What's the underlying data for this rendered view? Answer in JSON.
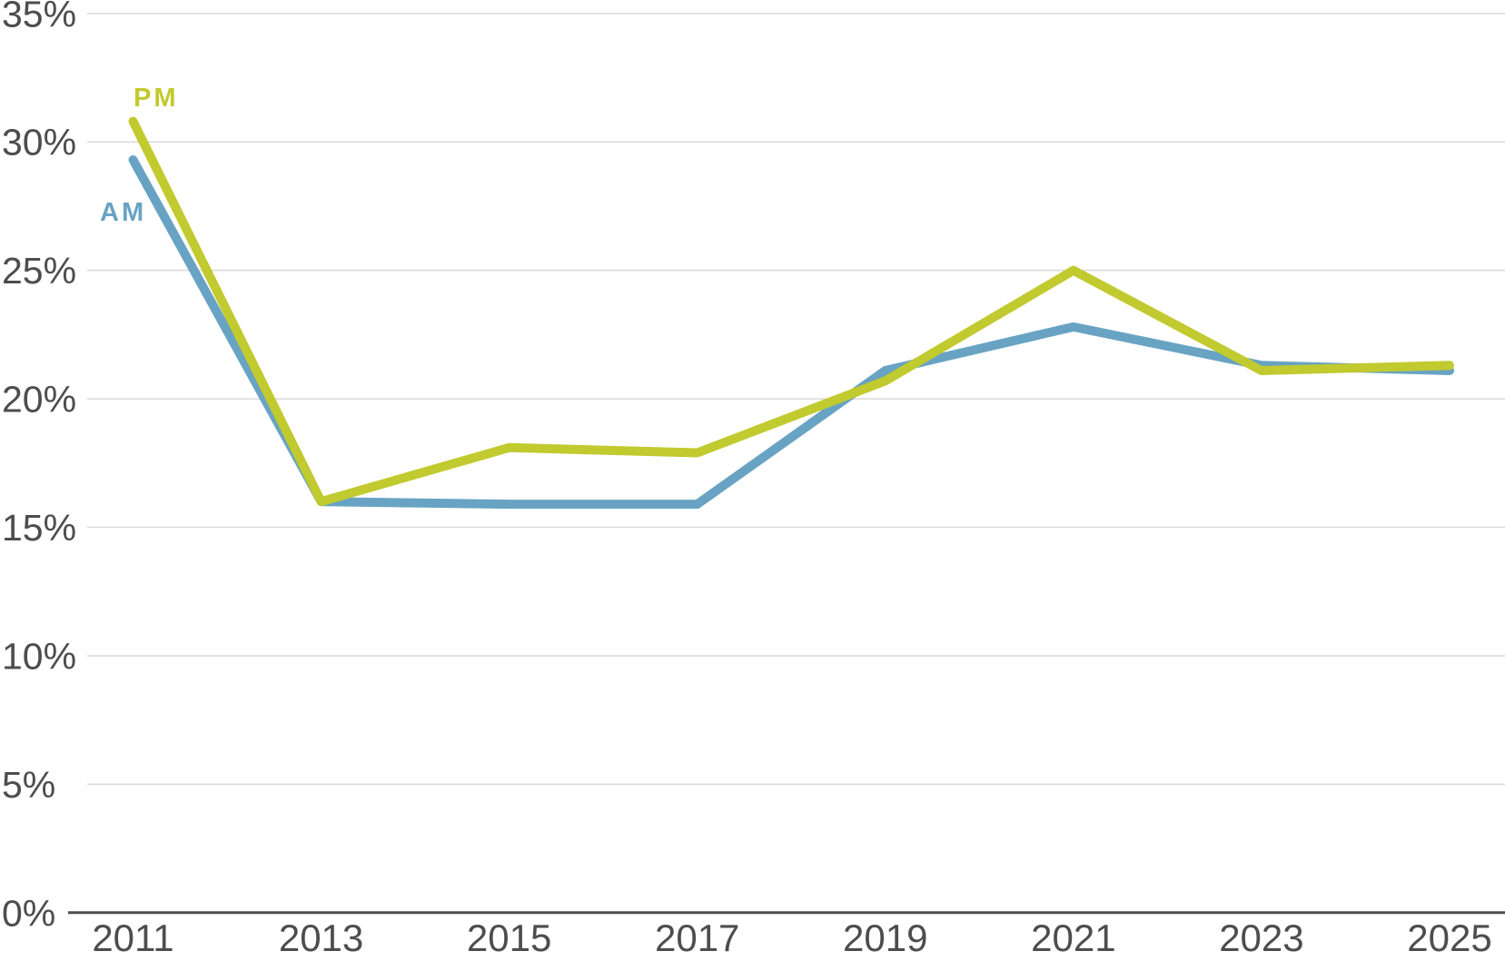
{
  "chart_data": {
    "type": "line",
    "x": [
      "2011",
      "2013",
      "2015",
      "2017",
      "2019",
      "2021",
      "2023",
      "2025"
    ],
    "series": [
      {
        "name": "AM",
        "color": "#68a3c3",
        "values": [
          29.3,
          16.0,
          15.9,
          15.9,
          21.1,
          22.8,
          21.3,
          21.1
        ]
      },
      {
        "name": "PM",
        "color": "#c1ca2e",
        "values": [
          30.8,
          16.0,
          18.1,
          17.9,
          20.7,
          25.0,
          21.1,
          21.3
        ]
      }
    ],
    "title": "",
    "xlabel": "",
    "ylabel": "",
    "ylim": [
      0,
      35
    ],
    "ytick_step": 5,
    "ytick_labels": [
      "0%",
      "5%",
      "10%",
      "15%",
      "20%",
      "25%",
      "30%",
      "35%"
    ],
    "xtick_labels": [
      "2011",
      "2013",
      "2015",
      "2017",
      "2019",
      "2021",
      "2023",
      "2025"
    ],
    "grid": "horizontal",
    "legend_position": "direct-line-labels",
    "line_labels": [
      {
        "text": "PM",
        "series": "PM"
      },
      {
        "text": "AM",
        "series": "AM"
      }
    ]
  },
  "colors": {
    "background": "#ffffff",
    "axis_text": "#4d4d4d",
    "gridline": "#d9d9d9",
    "zero_line": "#4d4d4d",
    "am_line": "#68a3c3",
    "pm_line": "#c1ca2e"
  }
}
